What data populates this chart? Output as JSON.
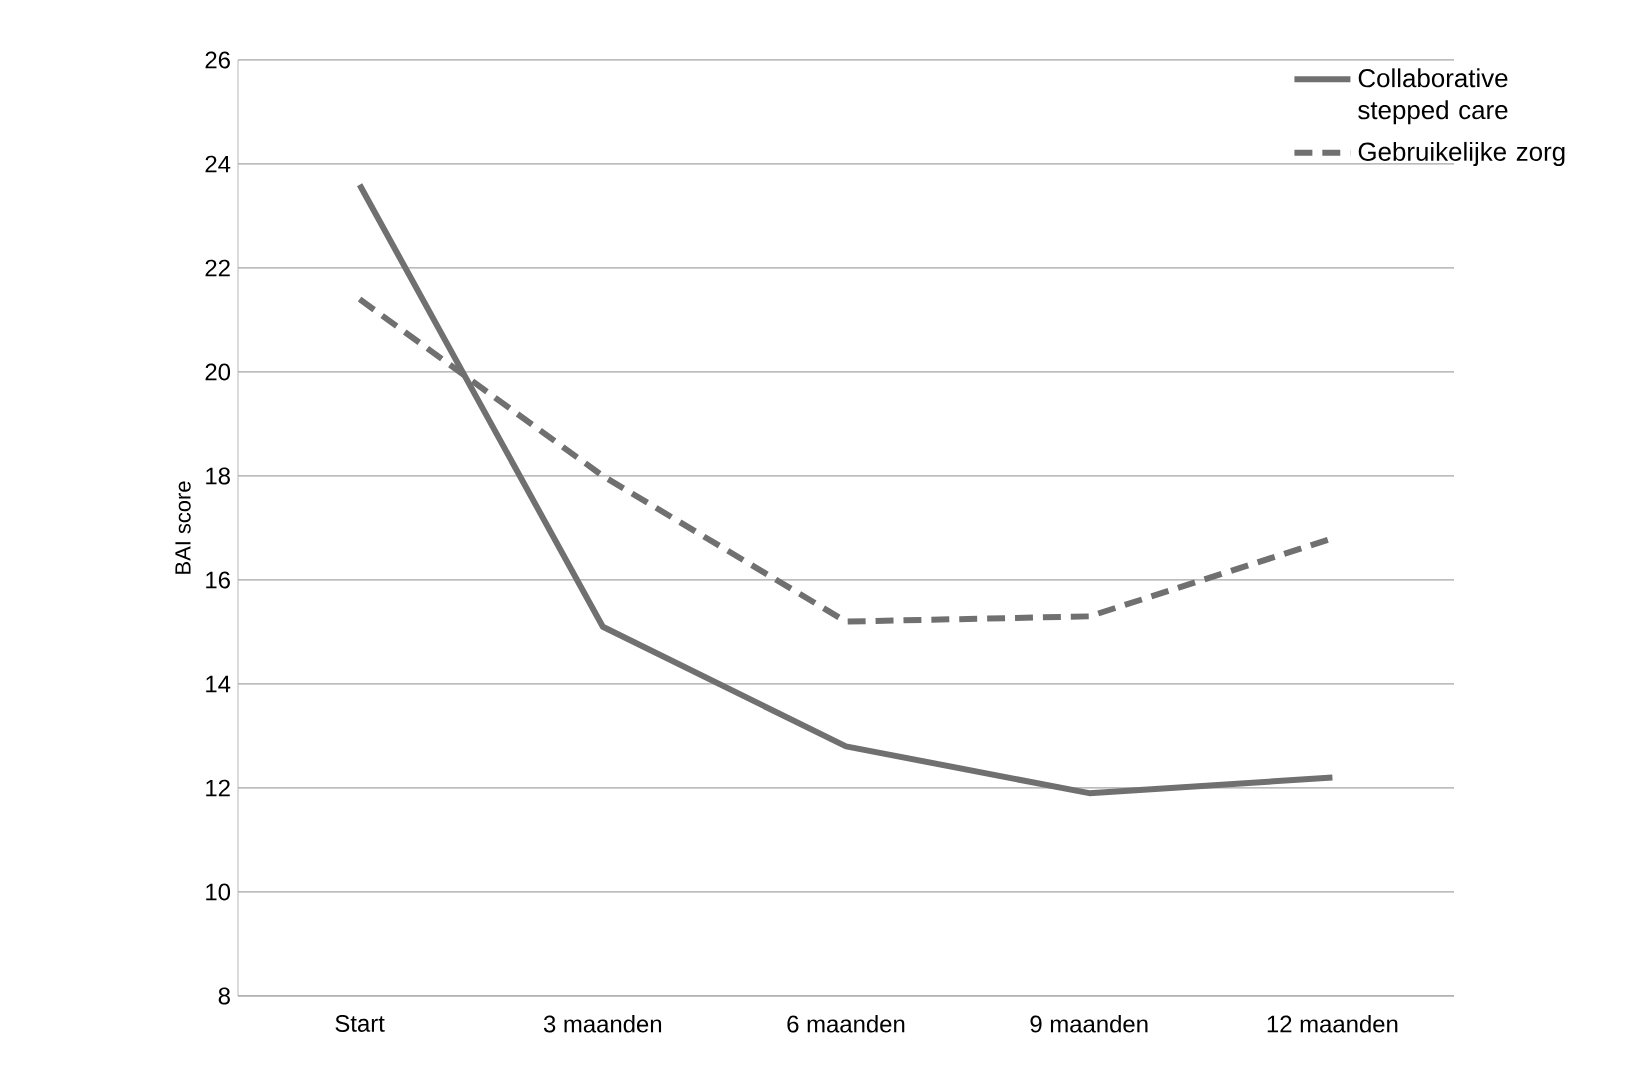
{
  "chart_data": {
    "type": "line",
    "ylabel": "BAI score",
    "categories": [
      "Start",
      "3 maanden",
      "6 maanden",
      "9 maanden",
      "12 maanden"
    ],
    "series": [
      {
        "name": "Collaborative stepped care",
        "color": "#707070",
        "line_style": "solid",
        "values": [
          23.6,
          15.1,
          12.8,
          11.9,
          12.2
        ]
      },
      {
        "name": "Gebruikelijke zorg",
        "color": "#707070",
        "line_style": "dashed",
        "values": [
          21.4,
          18.0,
          15.2,
          15.3,
          16.8
        ]
      }
    ],
    "ylim": [
      8,
      26
    ],
    "yticks": [
      8,
      10,
      12,
      14,
      16,
      18,
      20,
      22,
      24,
      26
    ],
    "grid": "y",
    "legend": "top right"
  }
}
